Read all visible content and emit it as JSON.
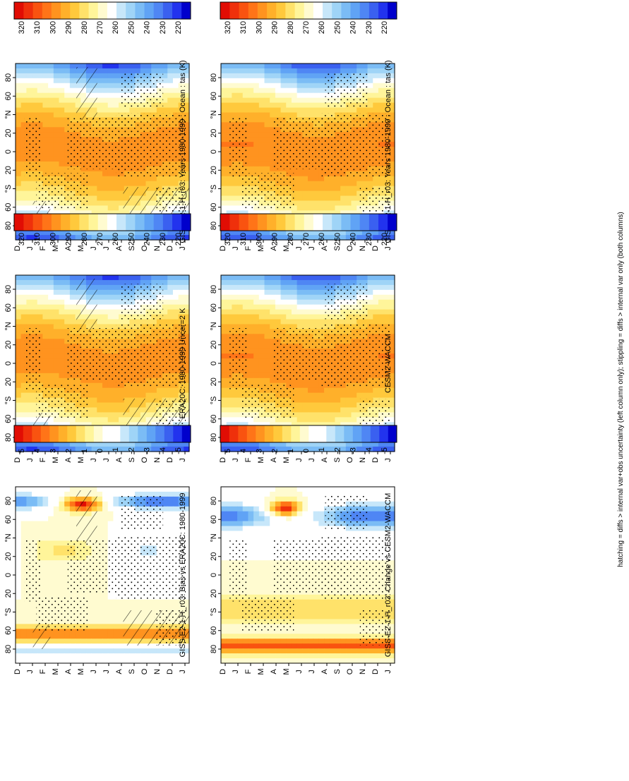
{
  "footnote": "hatching = diffs > internal var+obs uncertainty (left column only); stippling = diffs > internal var only (both columns)",
  "colors": {
    "temperature_scale": [
      "#0000cc",
      "#2233ee",
      "#3a60f0",
      "#4f86f4",
      "#60a3f5",
      "#7bbcf5",
      "#9fd4f7",
      "#c7e7fa",
      "#ffffff",
      "#fffbd0",
      "#fff59a",
      "#ffe26a",
      "#ffc93c",
      "#ffb02a",
      "#ff931f",
      "#ff7418",
      "#f95310",
      "#ef300b",
      "#e10d04"
    ],
    "difference_scale": [
      "#0000cc",
      "#2233ee",
      "#3a60f0",
      "#4f86f4",
      "#60a3f5",
      "#7bbcf5",
      "#9fd4f7",
      "#c7e7fa",
      "#ffffff",
      "#ffffff",
      "#fffbd0",
      "#fff59a",
      "#ffe26a",
      "#ffc93c",
      "#ffb02a",
      "#ff931f",
      "#ff7418",
      "#f95310",
      "#ef300b",
      "#e10d04"
    ]
  },
  "chart_data": [
    {
      "type": "heatmap",
      "panel": "top-left",
      "title": "GISS-E2-1-H_r03: Years 1980-1999 : Ocean : tas (K)",
      "x_ticks": [
        "D",
        "J",
        "F",
        "M",
        "A",
        "M",
        "J",
        "J",
        "A",
        "S",
        "O",
        "N",
        "D",
        "J"
      ],
      "y_ticks": [
        "80",
        "60",
        "°N",
        "20",
        "0",
        "20",
        "°S",
        "60",
        "80"
      ],
      "colorbar_labels": [
        "320",
        "310",
        "300",
        "290",
        "280",
        "270",
        "260",
        "250",
        "240",
        "230",
        "220"
      ],
      "zlim": [
        215,
        325
      ],
      "overlay": "hatching and stippling"
    },
    {
      "type": "heatmap",
      "panel": "top-right",
      "title": "GISS-E2-1-H_r03: Years 1980-1999 : Ocean : tas (K)",
      "x_ticks": [
        "D",
        "J",
        "F",
        "M",
        "A",
        "M",
        "J",
        "J",
        "A",
        "S",
        "O",
        "N",
        "D",
        "J"
      ],
      "y_ticks": [
        "80",
        "60",
        "°N",
        "20",
        "0",
        "20",
        "°S",
        "60",
        "80"
      ],
      "colorbar_labels": [
        "320",
        "310",
        "300",
        "290",
        "280",
        "270",
        "260",
        "250",
        "240",
        "230",
        "220"
      ],
      "zlim": [
        215,
        325
      ],
      "overlay": "stippling"
    },
    {
      "type": "heatmap",
      "panel": "middle-left",
      "title": "ERA20C: 1980-1999 Uncer=2 K",
      "x_ticks": [
        "D",
        "J",
        "F",
        "M",
        "A",
        "M",
        "J",
        "J",
        "A",
        "S",
        "O",
        "N",
        "D",
        "J"
      ],
      "y_ticks": [
        "80",
        "60",
        "°N",
        "20",
        "0",
        "20",
        "°S",
        "60",
        "80"
      ],
      "colorbar_labels": [
        "320",
        "310",
        "300",
        "290",
        "280",
        "270",
        "260",
        "250",
        "240",
        "230",
        "220"
      ],
      "zlim": [
        215,
        325
      ],
      "overlay": "hatching and stippling"
    },
    {
      "type": "heatmap",
      "panel": "middle-right",
      "title": "CESM2-WACCM",
      "x_ticks": [
        "D",
        "J",
        "F",
        "M",
        "A",
        "M",
        "J",
        "J",
        "A",
        "S",
        "O",
        "N",
        "D",
        "J"
      ],
      "y_ticks": [
        "80",
        "60",
        "°N",
        "20",
        "0",
        "20",
        "°S",
        "60",
        "80"
      ],
      "colorbar_labels": [
        "320",
        "310",
        "300",
        "290",
        "280",
        "270",
        "260",
        "250",
        "240",
        "230",
        "220"
      ],
      "zlim": [
        215,
        325
      ],
      "overlay": "stippling"
    },
    {
      "type": "heatmap",
      "panel": "bottom-left",
      "title": "GISS-E2-1-H_r03: Bias vs ERA20C: 1980-1999",
      "x_ticks": [
        "D",
        "J",
        "F",
        "M",
        "A",
        "M",
        "J",
        "J",
        "A",
        "S",
        "O",
        "N",
        "D",
        "J"
      ],
      "y_ticks": [
        "80",
        "60",
        "°N",
        "20",
        "0",
        "20",
        "°S",
        "60",
        "80"
      ],
      "colorbar_labels": [
        "5",
        "4",
        "3",
        "2",
        "1",
        "0",
        "-1",
        "-2",
        "-3",
        "-4",
        "-5"
      ],
      "zlim": [
        -5.5,
        5.5
      ],
      "overlay": "hatching and stippling"
    },
    {
      "type": "heatmap",
      "panel": "bottom-right",
      "title": "GISS-E2-1-H_r03: Change vs CESM2-WACCM",
      "x_ticks": [
        "D",
        "J",
        "F",
        "M",
        "A",
        "M",
        "J",
        "J",
        "A",
        "S",
        "O",
        "N",
        "D",
        "J"
      ],
      "y_ticks": [
        "80",
        "60",
        "°N",
        "20",
        "0",
        "20",
        "°S",
        "60",
        "80"
      ],
      "colorbar_labels": [
        "5",
        "4",
        "3",
        "2",
        "1",
        "0",
        "-1",
        "-2",
        "-3",
        "-4",
        "-5"
      ],
      "zlim": [
        -5.5,
        5.5
      ],
      "overlay": "stippling"
    }
  ]
}
